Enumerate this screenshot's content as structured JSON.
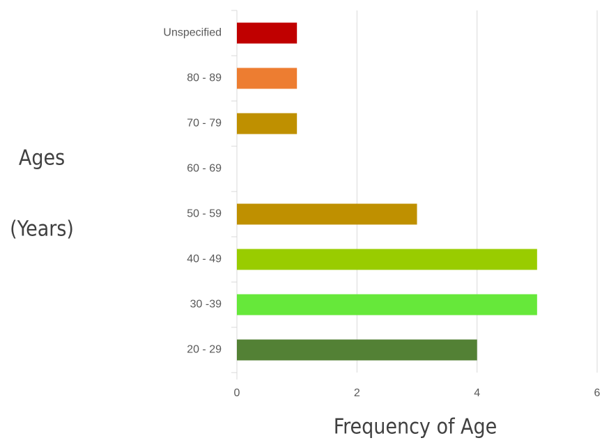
{
  "chart_data": {
    "type": "barh",
    "categories": [
      "Unspecified",
      "80 - 89",
      "70 - 79",
      "60 - 69",
      "50 - 59",
      "40 - 49",
      "30 -39",
      "20 - 29"
    ],
    "values": [
      1,
      1,
      1,
      0,
      3,
      5,
      5,
      4
    ],
    "colors": [
      "#c00000",
      "#ed7d31",
      "#bf9000",
      "#bf9000",
      "#bf9000",
      "#99cc00",
      "#66e83a",
      "#538135"
    ],
    "xlim": [
      0,
      6
    ],
    "xticks": [
      0,
      2,
      4,
      6
    ],
    "grid": true,
    "xlabel": "Frequency of Age",
    "ylabel": [
      "Ages",
      "(Years)"
    ]
  }
}
